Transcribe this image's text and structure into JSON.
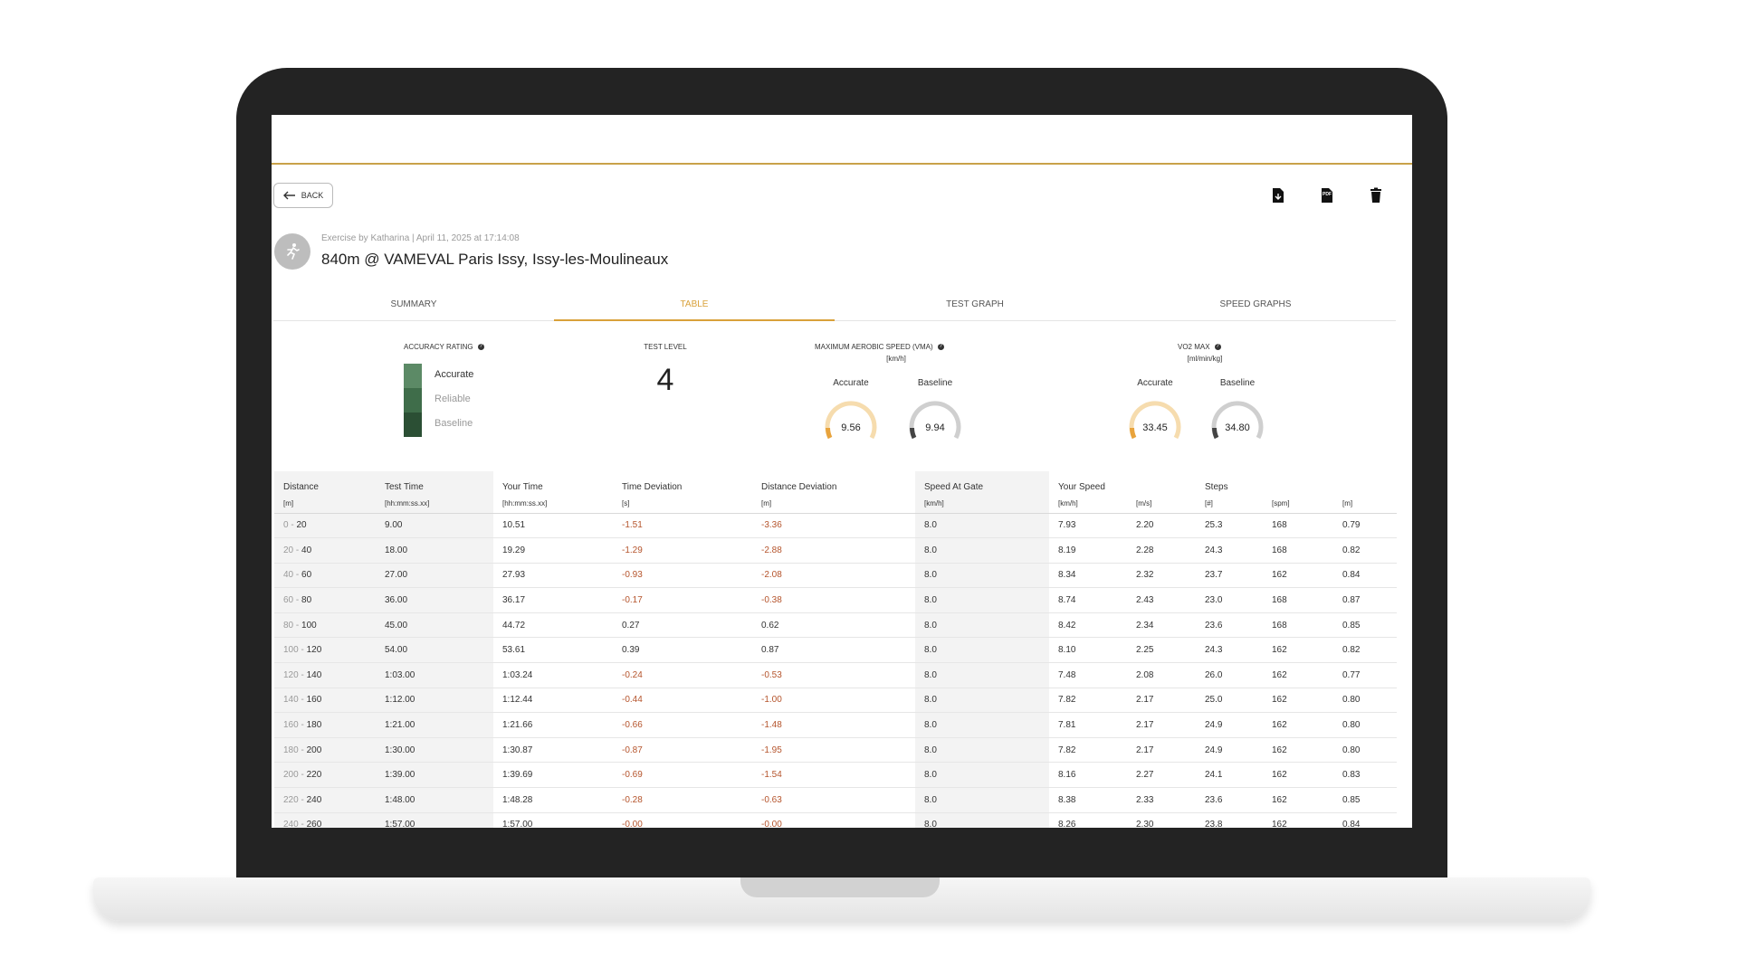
{
  "header": {
    "back_label": "BACK",
    "meta": "Exercise by Katharina | April 11, 2025 at 17:14:08",
    "title": "840m @ VAMEVAL Paris Issy, Issy-les-Moulineaux"
  },
  "actions": [
    {
      "icon": "export-file-icon"
    },
    {
      "icon": "pdf-icon",
      "label": "PDF"
    },
    {
      "icon": "trash-icon"
    }
  ],
  "tabs": [
    {
      "label": "SUMMARY",
      "active": false
    },
    {
      "label": "TABLE",
      "active": true
    },
    {
      "label": "TEST GRAPH",
      "active": false
    },
    {
      "label": "SPEED GRAPHS",
      "active": false
    }
  ],
  "accuracy": {
    "label": "ACCURACY RATING",
    "levels": [
      "Accurate",
      "Reliable",
      "Baseline"
    ],
    "level_colors": [
      "#5c8a66",
      "#3f6d4a",
      "#2b4f34"
    ]
  },
  "test_level": {
    "label": "TEST LEVEL",
    "value": "4"
  },
  "vma": {
    "label": "MAXIMUM AEROBIC SPEED (VMA)",
    "unit": "[km/h]",
    "accurate_label": "Accurate",
    "baseline_label": "Baseline",
    "accurate_value": "9.56",
    "baseline_value": "9.94"
  },
  "vo2": {
    "label": "VO2 MAX",
    "unit": "[ml/min/kg]",
    "accurate_label": "Accurate",
    "baseline_label": "Baseline",
    "accurate_value": "33.45",
    "baseline_value": "34.80"
  },
  "colors": {
    "accent": "#d9a13a",
    "negative": "#b5542c",
    "gauge_orange": "#e8a33c",
    "gauge_gray": "#555555"
  },
  "table": {
    "headers": [
      "Distance",
      "Test Time",
      "Your Time",
      "Time Deviation",
      "Distance Deviation",
      "Speed At Gate",
      "Your Speed",
      "",
      "Steps",
      "",
      ""
    ],
    "units": [
      "[m]",
      "[hh:mm:ss.xx]",
      "[hh:mm:ss.xx]",
      "[s]",
      "[m]",
      "[km/h]",
      "[km/h]",
      "[m/s]",
      "[#]",
      "[spm]",
      "[m]"
    ],
    "rows": [
      [
        "0",
        "20",
        "9.00",
        "10.51",
        "-1.51",
        "-3.36",
        "8.0",
        "7.93",
        "2.20",
        "25.3",
        "168",
        "0.79"
      ],
      [
        "20",
        "40",
        "18.00",
        "19.29",
        "-1.29",
        "-2.88",
        "8.0",
        "8.19",
        "2.28",
        "24.3",
        "168",
        "0.82"
      ],
      [
        "40",
        "60",
        "27.00",
        "27.93",
        "-0.93",
        "-2.08",
        "8.0",
        "8.34",
        "2.32",
        "23.7",
        "162",
        "0.84"
      ],
      [
        "60",
        "80",
        "36.00",
        "36.17",
        "-0.17",
        "-0.38",
        "8.0",
        "8.74",
        "2.43",
        "23.0",
        "168",
        "0.87"
      ],
      [
        "80",
        "100",
        "45.00",
        "44.72",
        "0.27",
        "0.62",
        "8.0",
        "8.42",
        "2.34",
        "23.6",
        "168",
        "0.85"
      ],
      [
        "100",
        "120",
        "54.00",
        "53.61",
        "0.39",
        "0.87",
        "8.0",
        "8.10",
        "2.25",
        "24.3",
        "162",
        "0.82"
      ],
      [
        "120",
        "140",
        "1:03.00",
        "1:03.24",
        "-0.24",
        "-0.53",
        "8.0",
        "7.48",
        "2.08",
        "26.0",
        "162",
        "0.77"
      ],
      [
        "140",
        "160",
        "1:12.00",
        "1:12.44",
        "-0.44",
        "-1.00",
        "8.0",
        "7.82",
        "2.17",
        "25.0",
        "162",
        "0.80"
      ],
      [
        "160",
        "180",
        "1:21.00",
        "1:21.66",
        "-0.66",
        "-1.48",
        "8.0",
        "7.81",
        "2.17",
        "24.9",
        "162",
        "0.80"
      ],
      [
        "180",
        "200",
        "1:30.00",
        "1:30.87",
        "-0.87",
        "-1.95",
        "8.0",
        "7.82",
        "2.17",
        "24.9",
        "162",
        "0.80"
      ],
      [
        "200",
        "220",
        "1:39.00",
        "1:39.69",
        "-0.69",
        "-1.54",
        "8.0",
        "8.16",
        "2.27",
        "24.1",
        "162",
        "0.83"
      ],
      [
        "220",
        "240",
        "1:48.00",
        "1:48.28",
        "-0.28",
        "-0.63",
        "8.0",
        "8.38",
        "2.33",
        "23.6",
        "162",
        "0.85"
      ],
      [
        "240",
        "260",
        "1:57.00",
        "1:57.00",
        "-0.00",
        "-0.00",
        "8.0",
        "8.26",
        "2.30",
        "23.8",
        "162",
        "0.84"
      ]
    ]
  }
}
